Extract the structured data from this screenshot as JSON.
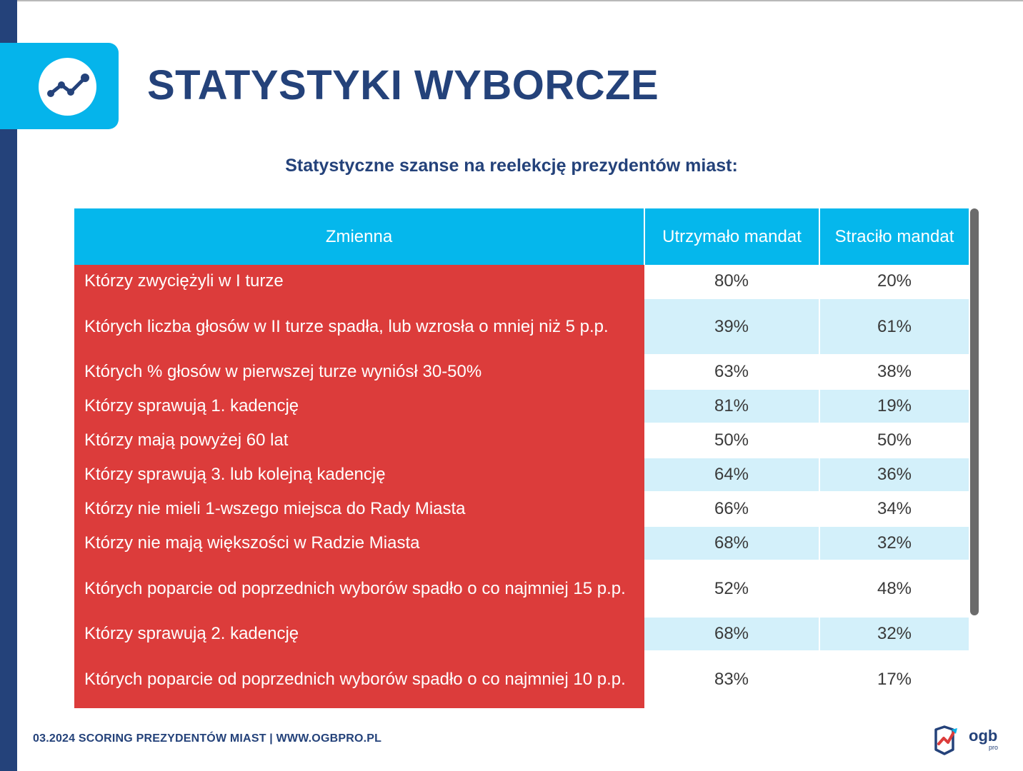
{
  "header": {
    "icon": "line-chart-icon",
    "title": "STATYSTYKI WYBORCZE"
  },
  "subtitle": "Statystyczne szanse na reelekcję prezydentów miast:",
  "table": {
    "headers": [
      "Zmienna",
      "Utrzymało mandat",
      "Straciło mandat"
    ],
    "rows": [
      {
        "label": "Którzy zwyciężyli w I turze",
        "kept": "80%",
        "lost": "20%"
      },
      {
        "label": "Których liczba głosów w II turze spadła, lub wzrosła o mniej niż 5 p.p.",
        "kept": "39%",
        "lost": "61%"
      },
      {
        "label": "Których % głosów w pierwszej turze wyniósł 30-50%",
        "kept": "63%",
        "lost": "38%"
      },
      {
        "label": "Którzy sprawują 1. kadencję",
        "kept": "81%",
        "lost": "19%"
      },
      {
        "label": "Którzy mają powyżej 60 lat",
        "kept": "50%",
        "lost": "50%"
      },
      {
        "label": "Którzy sprawują 3. lub kolejną kadencję",
        "kept": "64%",
        "lost": "36%"
      },
      {
        "label": "Którzy nie mieli 1-wszego miejsca do Rady Miasta",
        "kept": "66%",
        "lost": "34%"
      },
      {
        "label": "Którzy nie mają większości w Radzie Miasta",
        "kept": "68%",
        "lost": "32%"
      },
      {
        "label": "Których poparcie od poprzednich wyborów spadło o co najmniej 15 p.p.",
        "kept": "52%",
        "lost": "48%"
      },
      {
        "label": "Którzy sprawują 2. kadencję",
        "kept": "68%",
        "lost": "32%"
      },
      {
        "label": "Których poparcie od poprzednich wyborów spadło o co najmniej 10 p.p.",
        "kept": "83%",
        "lost": "17%"
      }
    ]
  },
  "footer": {
    "text": "03.2024 SCORING PREZYDENTÓW MIAST | WWW.OGBPRO.PL",
    "brand": "ogb",
    "brand_sub": "pro",
    "brand_icon": "ogb-logo-icon"
  },
  "colors": {
    "navy": "#24427a",
    "cyan": "#05b4eb",
    "red": "#dc3c3b",
    "tint": "#d3f0fa"
  }
}
